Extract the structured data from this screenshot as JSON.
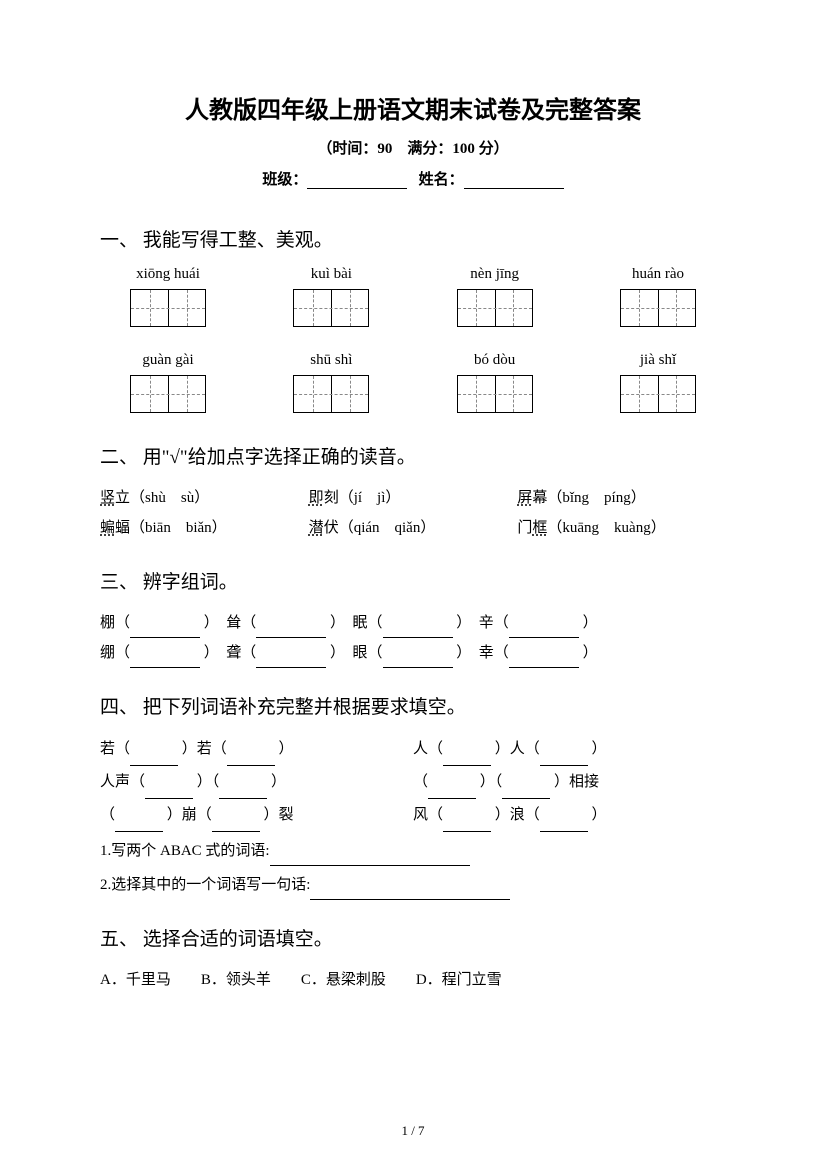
{
  "title": "人教版四年级上册语文期末试卷及完整答案",
  "subtitle": "（时间：90　满分：100 分）",
  "info": {
    "class_label": "班级：",
    "name_label": "姓名："
  },
  "s1": {
    "head": "一、 我能写得工整、美观。",
    "row1": [
      "xiōng huái",
      "kuì bài",
      "nèn jīng",
      "huán rào"
    ],
    "row2": [
      "guàn gài",
      "shū shì",
      "bó dòu",
      "jià shǐ"
    ]
  },
  "s2": {
    "head": "二、 用\"√\"给加点字选择正确的读音。",
    "r1c1": {
      "ch": "竖",
      "rest": "立（shù　sù）"
    },
    "r1c2": {
      "ch": "即",
      "rest": "刻（jí　jì）"
    },
    "r1c3": {
      "ch": "屏",
      "rest": "幕（bǐng　píng）"
    },
    "r2c1": {
      "ch": "蝙",
      "rest": "蝠（biān　biǎn）"
    },
    "r2c2": {
      "ch": "潜",
      "rest": "伏（qián　qiǎn）"
    },
    "r2c3": {
      "pre": "门",
      "ch": "框",
      "rest": "（kuāng　kuàng）"
    }
  },
  "s3": {
    "head": "三、 辨字组词。",
    "r1": {
      "a": "棚（",
      "b": "）　耸（",
      "c": "）　眠（",
      "d": "）　辛（",
      "e": "）"
    },
    "r2": {
      "a": "绷（",
      "b": "）　聋（",
      "c": "）　眼（",
      "d": "）　幸（",
      "e": "）"
    }
  },
  "s4": {
    "head": "四、 把下列词语补充完整并根据要求填空。",
    "r1l": {
      "a": "若（",
      "b": "）若（",
      "c": "）"
    },
    "r1r": {
      "a": "人（",
      "b": "）人（",
      "c": "）"
    },
    "r2l": {
      "a": "人声（",
      "b": "）（",
      "c": "）"
    },
    "r2r": {
      "a": "（",
      "b": "）（",
      "c": "）相接"
    },
    "r3l": {
      "a": "（",
      "b": "）崩（",
      "c": "）裂"
    },
    "r3r": {
      "a": "风（",
      "b": "）浪（",
      "c": "）"
    },
    "sub1": "1.写两个 ABAC 式的词语:",
    "sub2": "2.选择其中的一个词语写一句话:"
  },
  "s5": {
    "head": "五、 选择合适的词语填空。",
    "opts": "A．千里马　　B．领头羊　　C．悬梁刺股　　D．程门立雪"
  },
  "page": "1 / 7"
}
